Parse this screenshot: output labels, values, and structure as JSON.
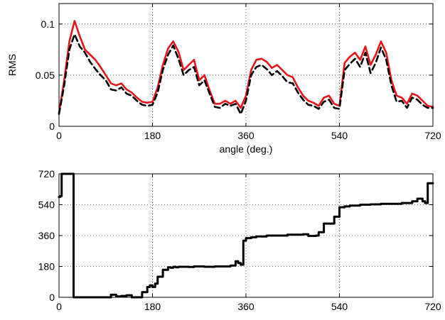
{
  "chart_data": [
    {
      "type": "line",
      "title": "",
      "xlabel": "angle (deg.)",
      "ylabel": "RMS",
      "xlim": [
        0,
        720
      ],
      "ylim": [
        0,
        0.12
      ],
      "xticks": [
        "0",
        "180",
        "360",
        "540",
        "720"
      ],
      "yticks": [
        "0",
        "0.05",
        "0.1"
      ],
      "grid": true,
      "series": [
        {
          "color": "#e8141b",
          "style": "solid",
          "x": [
            0,
            10,
            20,
            30,
            40,
            50,
            60,
            70,
            80,
            90,
            100,
            110,
            120,
            130,
            140,
            150,
            160,
            170,
            180,
            190,
            200,
            210,
            220,
            230,
            240,
            250,
            260,
            270,
            280,
            290,
            300,
            310,
            320,
            330,
            340,
            350,
            360,
            370,
            380,
            390,
            400,
            410,
            420,
            430,
            440,
            450,
            460,
            470,
            480,
            490,
            500,
            510,
            520,
            530,
            540,
            550,
            560,
            570,
            580,
            590,
            600,
            610,
            620,
            630,
            640,
            650,
            660,
            670,
            680,
            690,
            700,
            710,
            720
          ],
          "y": [
            0.013,
            0.045,
            0.083,
            0.103,
            0.088,
            0.075,
            0.07,
            0.065,
            0.058,
            0.05,
            0.042,
            0.04,
            0.042,
            0.036,
            0.033,
            0.028,
            0.024,
            0.023,
            0.024,
            0.038,
            0.06,
            0.076,
            0.083,
            0.073,
            0.055,
            0.06,
            0.065,
            0.045,
            0.05,
            0.035,
            0.022,
            0.022,
            0.025,
            0.022,
            0.025,
            0.018,
            0.03,
            0.055,
            0.065,
            0.066,
            0.063,
            0.057,
            0.06,
            0.055,
            0.05,
            0.048,
            0.038,
            0.03,
            0.025,
            0.023,
            0.02,
            0.028,
            0.03,
            0.022,
            0.02,
            0.062,
            0.068,
            0.072,
            0.065,
            0.078,
            0.06,
            0.07,
            0.083,
            0.072,
            0.045,
            0.03,
            0.028,
            0.022,
            0.032,
            0.03,
            0.025,
            0.02,
            0.019
          ]
        },
        {
          "color": "#000000",
          "style": "dashed",
          "x": [
            0,
            10,
            20,
            30,
            40,
            50,
            60,
            70,
            80,
            90,
            100,
            110,
            120,
            130,
            140,
            150,
            160,
            170,
            180,
            190,
            200,
            210,
            220,
            230,
            240,
            250,
            260,
            270,
            280,
            290,
            300,
            310,
            320,
            330,
            340,
            350,
            360,
            370,
            380,
            390,
            400,
            410,
            420,
            430,
            440,
            450,
            460,
            470,
            480,
            490,
            500,
            510,
            520,
            530,
            540,
            550,
            560,
            570,
            580,
            590,
            600,
            610,
            620,
            630,
            640,
            650,
            660,
            670,
            680,
            690,
            700,
            710,
            720
          ],
          "y": [
            0.012,
            0.04,
            0.075,
            0.09,
            0.078,
            0.072,
            0.063,
            0.056,
            0.05,
            0.045,
            0.036,
            0.035,
            0.038,
            0.032,
            0.03,
            0.025,
            0.021,
            0.02,
            0.021,
            0.033,
            0.055,
            0.07,
            0.079,
            0.066,
            0.05,
            0.055,
            0.058,
            0.04,
            0.045,
            0.032,
            0.019,
            0.018,
            0.022,
            0.02,
            0.022,
            0.012,
            0.025,
            0.05,
            0.058,
            0.06,
            0.056,
            0.05,
            0.054,
            0.049,
            0.043,
            0.042,
            0.033,
            0.026,
            0.021,
            0.02,
            0.017,
            0.024,
            0.026,
            0.018,
            0.017,
            0.055,
            0.061,
            0.066,
            0.058,
            0.072,
            0.052,
            0.062,
            0.077,
            0.065,
            0.04,
            0.024,
            0.025,
            0.018,
            0.028,
            0.026,
            0.021,
            0.018,
            0.018
          ]
        }
      ]
    },
    {
      "type": "line",
      "title": "",
      "xlabel": "",
      "ylabel": "",
      "xlim": [
        0,
        720
      ],
      "ylim": [
        0,
        720
      ],
      "xticks": [
        "0",
        "180",
        "360",
        "540",
        "720"
      ],
      "yticks": [
        "0",
        "180",
        "360",
        "540",
        "720"
      ],
      "grid": true,
      "series": [
        {
          "color": "#000000",
          "style": "solid",
          "x": [
            0,
            2,
            5,
            10,
            20,
            27,
            28,
            30,
            40,
            60,
            70,
            80,
            90,
            100,
            110,
            120,
            130,
            140,
            150,
            160,
            170,
            175,
            180,
            185,
            190,
            200,
            210,
            215,
            220,
            225,
            230,
            240,
            250,
            260,
            270,
            280,
            300,
            310,
            320,
            330,
            340,
            345,
            350,
            355,
            360,
            370,
            380,
            400,
            420,
            440,
            460,
            470,
            480,
            495,
            500,
            510,
            530,
            540,
            550,
            560,
            580,
            600,
            620,
            640,
            660,
            680,
            690,
            700,
            705,
            710,
            720
          ],
          "y": [
            585,
            590,
            720,
            720,
            720,
            720,
            0,
            0,
            0,
            0,
            0,
            0,
            0,
            15,
            5,
            8,
            12,
            0,
            0,
            30,
            60,
            70,
            60,
            80,
            120,
            160,
            175,
            172,
            178,
            175,
            178,
            178,
            177,
            180,
            180,
            178,
            180,
            180,
            180,
            185,
            210,
            200,
            190,
            330,
            345,
            350,
            355,
            360,
            360,
            365,
            365,
            368,
            358,
            360,
            380,
            430,
            470,
            525,
            530,
            535,
            540,
            542,
            545,
            545,
            550,
            560,
            575,
            560,
            550,
            665,
            665
          ]
        }
      ]
    }
  ]
}
